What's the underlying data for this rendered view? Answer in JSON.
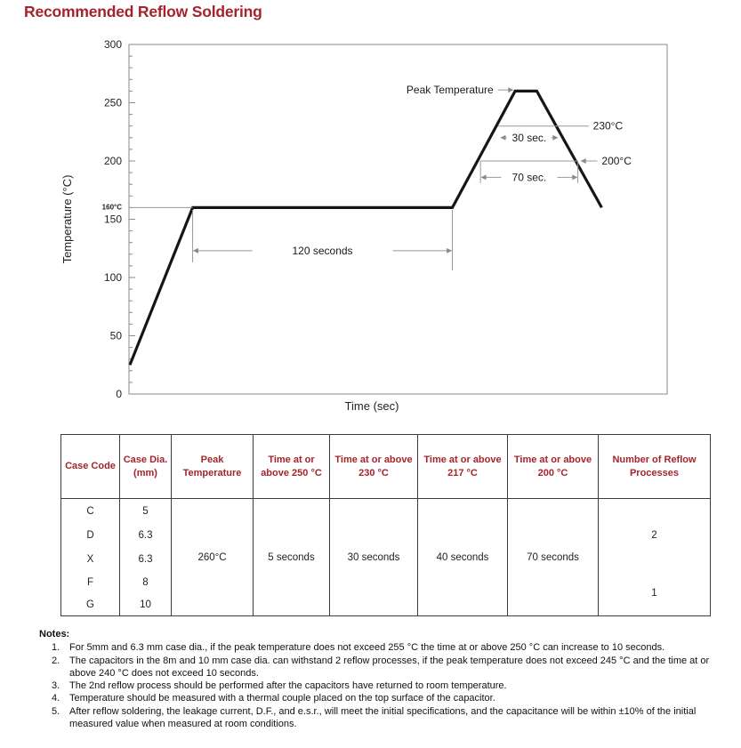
{
  "page": {
    "title": "Recommended Reflow Soldering"
  },
  "colors": {
    "heading_red": "#a5242c",
    "curve_black": "#161616",
    "annotation_gray": "#999999"
  },
  "chart_data": {
    "type": "line",
    "title": "",
    "xlabel": "Time (sec)",
    "ylabel": "Temperature (°C)",
    "ylim": [
      0,
      300
    ],
    "yticks": [
      0,
      50,
      100,
      150,
      200,
      250,
      300
    ],
    "ytick_minor_step": 10,
    "xticks": [],
    "grid": "off",
    "soak_temp_label": "160°C",
    "series": [
      {
        "name": "reflow profile",
        "points": [
          [
            0,
            25
          ],
          [
            29,
            160
          ],
          [
            149,
            160
          ],
          [
            178,
            260
          ],
          [
            188,
            260
          ],
          [
            218,
            160
          ]
        ]
      }
    ],
    "annotations": [
      {
        "kind": "hline",
        "T": 160,
        "t1": -0.4,
        "t2": 29
      },
      {
        "kind": "vline",
        "t": 29,
        "T1": 158,
        "T2": 113
      },
      {
        "kind": "vline",
        "t": 149,
        "T1": 158,
        "T2": 106
      },
      {
        "kind": "dim",
        "T": 123,
        "t1": 29,
        "t2": 149,
        "text": "120 seconds",
        "tw": 150
      },
      {
        "kind": "text",
        "t": 168,
        "T": 261,
        "text": "Peak Temperature",
        "anchor": "end"
      },
      {
        "kind": "arrow",
        "t1": 170,
        "T1": 261,
        "t2": 177,
        "T2": 261
      },
      {
        "kind": "hline",
        "T": 230,
        "t1": 170,
        "t2": 212
      },
      {
        "kind": "text",
        "t": 214,
        "T": 230,
        "text": "230°C",
        "anchor": "start"
      },
      {
        "kind": "dim",
        "T": 220,
        "t1": 171,
        "t2": 198,
        "text": "30 sec.",
        "tw": 42
      },
      {
        "kind": "hline",
        "T": 200,
        "t1": 162,
        "t2": 207
      },
      {
        "kind": "vline",
        "t": 162,
        "T1": 200,
        "T2": 181
      },
      {
        "kind": "vline",
        "t": 207,
        "T1": 200,
        "T2": 181
      },
      {
        "kind": "arrow",
        "t1": 216,
        "T1": 200,
        "t2": 208.5,
        "T2": 200
      },
      {
        "kind": "text",
        "t": 218,
        "T": 200,
        "text": "200°C",
        "anchor": "start"
      },
      {
        "kind": "dim",
        "T": 186,
        "t1": 162,
        "t2": 207,
        "text": "70 sec.",
        "tw": 55
      }
    ]
  },
  "table": {
    "columns": [
      "Case Code",
      "Case Dia. (mm)",
      "Peak Temperature",
      "Time at or above 250 °C",
      "Time at or above 230 °C",
      "Time at or above 217 °C",
      "Time at or above 200 °C",
      "Number of Reflow Processes"
    ],
    "groups": [
      {
        "rows": [
          [
            "C",
            "5"
          ],
          [
            "D",
            "6.3"
          ],
          [
            "X",
            "6.3"
          ]
        ],
        "reflow_processes": "2"
      },
      {
        "rows": [
          [
            "F",
            "8"
          ],
          [
            "G",
            "10"
          ]
        ],
        "reflow_processes": "1"
      }
    ],
    "merged": {
      "peak_temperature": "260°C",
      "above_250": "5 seconds",
      "above_230": "30 seconds",
      "above_217": "40 seconds",
      "above_200": "70 seconds"
    }
  },
  "notes": {
    "heading": "Notes:",
    "items": [
      {
        "num": "1.",
        "text": "For 5mm and 6.3 mm case dia., if the peak temperature does not exceed 255 °C the time at or above 250 °C can increase to 10 seconds."
      },
      {
        "num": "2.",
        "text": "The capacitors in the 8m and 10 mm case dia. can withstand 2 reflow processes, if the peak temperature does not exceed 245 °C and the time at or above 240 °C does not exceed 10 seconds."
      },
      {
        "num": "3.",
        "text": "The 2nd reflow process should be performed after the capacitors have returned to room temperature."
      },
      {
        "num": "4.",
        "text": "Temperature should be measured with a thermal couple placed on the top surface of the capacitor."
      },
      {
        "num": "5.",
        "text": "After reflow soldering, the leakage current, D.F., and e.s.r., will meet the initial specifications, and the capacitance will be within ±10% of the initial measured value when measured at room conditions."
      }
    ]
  }
}
